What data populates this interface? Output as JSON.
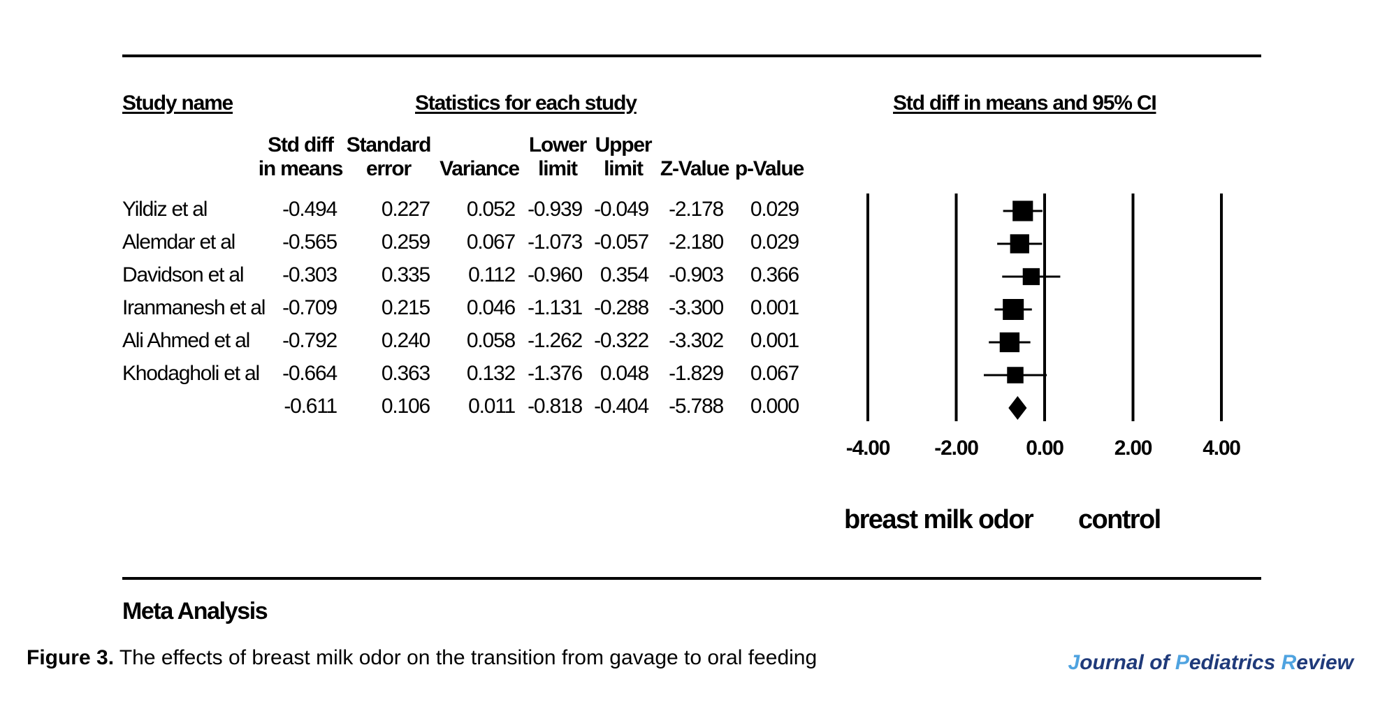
{
  "header": {
    "study_name": "Study name",
    "stats_title": "Statistics for each study",
    "ci_title": "Std diff in means and 95% CI"
  },
  "columns": [
    {
      "line1": "Std diff",
      "line2": "in means"
    },
    {
      "line1": "Standard",
      "line2": "error"
    },
    {
      "line1": "",
      "line2": "Variance"
    },
    {
      "line1": "Lower",
      "line2": "limit"
    },
    {
      "line1": "Upper",
      "line2": "limit"
    },
    {
      "line1": "",
      "line2": "Z-Value"
    },
    {
      "line1": "",
      "line2": "p-Value"
    }
  ],
  "rows": [
    {
      "name": "Yildiz et al",
      "cells": [
        "-0.494",
        "0.227",
        "0.052",
        "-0.939",
        "-0.049",
        "-2.178",
        "0.029"
      ]
    },
    {
      "name": "Alemdar et al",
      "cells": [
        "-0.565",
        "0.259",
        "0.067",
        "-1.073",
        "-0.057",
        "-2.180",
        "0.029"
      ]
    },
    {
      "name": "Davidson et al",
      "cells": [
        "-0.303",
        "0.335",
        "0.112",
        "-0.960",
        "0.354",
        "-0.903",
        "0.366"
      ]
    },
    {
      "name": "Iranmanesh et al",
      "cells": [
        "-0.709",
        "0.215",
        "0.046",
        "-1.131",
        "-0.288",
        "-3.300",
        "0.001"
      ]
    },
    {
      "name": "Ali Ahmed  et al",
      "cells": [
        "-0.792",
        "0.240",
        "0.058",
        "-1.262",
        "-0.322",
        "-3.302",
        "0.001"
      ]
    },
    {
      "name": "Khodagholi et al",
      "cells": [
        "-0.664",
        "0.363",
        "0.132",
        "-1.376",
        "0.048",
        "-1.829",
        "0.067"
      ]
    },
    {
      "name": "",
      "cells": [
        "-0.611",
        "0.106",
        "0.011",
        "-0.818",
        "-0.404",
        "-5.788",
        "0.000"
      ]
    }
  ],
  "chart_data": {
    "type": "forest",
    "x_ticks": [
      "-4.00",
      "-2.00",
      "0.00",
      "2.00",
      "4.00"
    ],
    "xlim": [
      -4,
      4
    ],
    "studies": [
      {
        "name": "Yildiz et al",
        "estimate": -0.494,
        "lower": -0.939,
        "upper": -0.049,
        "weight": 0.227
      },
      {
        "name": "Alemdar et al",
        "estimate": -0.565,
        "lower": -1.073,
        "upper": -0.057,
        "weight": 0.259
      },
      {
        "name": "Davidson et al",
        "estimate": -0.303,
        "lower": -0.96,
        "upper": 0.354,
        "weight": 0.335
      },
      {
        "name": "Iranmanesh et al",
        "estimate": -0.709,
        "lower": -1.131,
        "upper": -0.288,
        "weight": 0.215
      },
      {
        "name": "Ali Ahmed  et al",
        "estimate": -0.792,
        "lower": -1.262,
        "upper": -0.322,
        "weight": 0.24
      },
      {
        "name": "Khodagholi et al",
        "estimate": -0.664,
        "lower": -1.376,
        "upper": 0.048,
        "weight": 0.363
      }
    ],
    "summary": {
      "estimate": -0.611,
      "lower": -0.818,
      "upper": -0.404
    },
    "left_label": "breast milk odor",
    "right_label": "control"
  },
  "footer": {
    "meta": "Meta Analysis",
    "caption_bold": "Figure 3.",
    "caption_text": " The effects of breast milk odor on the transition from gavage to oral feeding",
    "journal_j": "J",
    "journal_1": "ournal of ",
    "journal_p": "P",
    "journal_2": "ediatrics ",
    "journal_r": "R",
    "journal_3": "eview"
  }
}
